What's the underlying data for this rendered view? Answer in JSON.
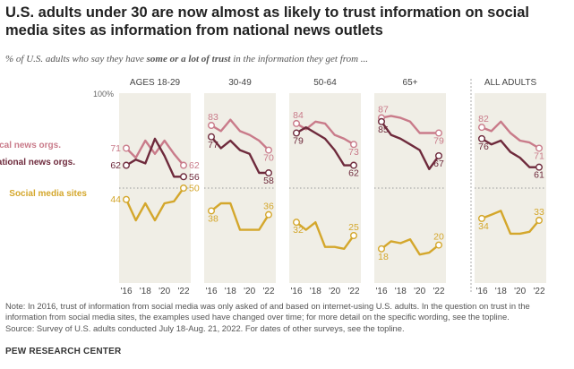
{
  "header": {
    "title": "U.S. adults under 30 are now almost as likely to trust information on social media sites as information from national news outlets",
    "subtitle_pre": "% of U.S. adults who say they have ",
    "subtitle_bold": "some or a lot of trust",
    "subtitle_post": " in the information they get from ..."
  },
  "footnote": {
    "note": "Note: In 2016, trust of information from social media was only asked of and based on internet-using U.S. adults. In the question on trust in the information from social media sites, the examples used have changed over time; for more detail on the specific wording, see the topline.",
    "source": "Source: Survey of U.S. adults conducted July 18-Aug. 21, 2022. For dates of other surveys, see the topline.",
    "org": "PEW RESEARCH CENTER"
  },
  "chart_data": {
    "type": "line",
    "y_axis_top_label": "100%",
    "ylim": [
      0,
      100
    ],
    "x_tick_labels": [
      "'16",
      "'18",
      "'20",
      "'22"
    ],
    "colors": {
      "local": "#c97b8a",
      "national": "#6e2a3c",
      "social": "#d4a72c",
      "panel_bg": "#f0eee6"
    },
    "series_labels": {
      "local": "Local news orgs.",
      "national": "National news orgs.",
      "social": "Social media sites"
    },
    "panels": [
      {
        "name": "AGES 18-29",
        "local": {
          "x": [
            2016,
            2017,
            2018,
            2019,
            2020,
            2021,
            2022
          ],
          "y": [
            71,
            66,
            75,
            68,
            75,
            68,
            62
          ]
        },
        "national": {
          "x": [
            2016,
            2017,
            2018,
            2019,
            2020,
            2021,
            2022
          ],
          "y": [
            62,
            65,
            63,
            76,
            67,
            56,
            56
          ]
        },
        "social": {
          "x": [
            2016,
            2017,
            2018,
            2019,
            2020,
            2021,
            2022
          ],
          "y": [
            44,
            33,
            42,
            33,
            42,
            43,
            50
          ]
        },
        "start_labels": {
          "local": "71",
          "national": "62",
          "social": "44"
        },
        "end_labels": {
          "local": "62",
          "national": "56",
          "social": "50"
        }
      },
      {
        "name": "30-49",
        "local": {
          "x": [
            2016,
            2017,
            2018,
            2019,
            2020,
            2021,
            2022
          ],
          "y": [
            83,
            80,
            86,
            80,
            78,
            75,
            70
          ]
        },
        "national": {
          "x": [
            2016,
            2017,
            2018,
            2019,
            2020,
            2021,
            2022
          ],
          "y": [
            77,
            71,
            75,
            70,
            68,
            58,
            58
          ]
        },
        "social": {
          "x": [
            2016,
            2017,
            2018,
            2019,
            2020,
            2021,
            2022
          ],
          "y": [
            38,
            42,
            42,
            28,
            28,
            28,
            36
          ]
        },
        "start_labels": {
          "local": "83",
          "national": "77",
          "social": "38"
        },
        "end_labels": {
          "local": "70",
          "national": "58",
          "social": "36"
        }
      },
      {
        "name": "50-64",
        "local": {
          "x": [
            2016,
            2017,
            2018,
            2019,
            2020,
            2021,
            2022
          ],
          "y": [
            84,
            81,
            85,
            84,
            78,
            76,
            73
          ]
        },
        "national": {
          "x": [
            2016,
            2017,
            2018,
            2019,
            2020,
            2021,
            2022
          ],
          "y": [
            79,
            82,
            79,
            76,
            70,
            62,
            62
          ]
        },
        "social": {
          "x": [
            2016,
            2017,
            2018,
            2019,
            2020,
            2021,
            2022
          ],
          "y": [
            32,
            28,
            32,
            19,
            19,
            18,
            25
          ]
        },
        "start_labels": {
          "local": "84",
          "national": "79",
          "social": "32"
        },
        "end_labels": {
          "local": "73",
          "national": "62",
          "social": "25"
        }
      },
      {
        "name": "65+",
        "local": {
          "x": [
            2016,
            2017,
            2018,
            2019,
            2020,
            2021,
            2022
          ],
          "y": [
            87,
            88,
            87,
            85,
            79,
            79,
            79
          ]
        },
        "national": {
          "x": [
            2016,
            2017,
            2018,
            2019,
            2020,
            2021,
            2022
          ],
          "y": [
            85,
            78,
            76,
            73,
            70,
            60,
            67
          ]
        },
        "social": {
          "x": [
            2016,
            2017,
            2018,
            2019,
            2020,
            2021,
            2022
          ],
          "y": [
            18,
            22,
            21,
            23,
            15,
            16,
            20
          ]
        },
        "start_labels": {
          "local": "87",
          "national": "85",
          "social": "18"
        },
        "end_labels": {
          "local": "79",
          "national": "67",
          "social": "20"
        }
      },
      {
        "name": "ALL ADULTS",
        "local": {
          "x": [
            2016,
            2017,
            2018,
            2019,
            2020,
            2021,
            2022
          ],
          "y": [
            82,
            80,
            85,
            79,
            75,
            74,
            71
          ]
        },
        "national": {
          "x": [
            2016,
            2017,
            2018,
            2019,
            2020,
            2021,
            2022
          ],
          "y": [
            76,
            73,
            75,
            69,
            66,
            61,
            61
          ]
        },
        "social": {
          "x": [
            2016,
            2017,
            2018,
            2019,
            2020,
            2021,
            2022
          ],
          "y": [
            34,
            36,
            38,
            26,
            26,
            27,
            33
          ]
        },
        "start_labels": {
          "local": "82",
          "national": "76",
          "social": "34"
        },
        "end_labels": {
          "local": "71",
          "national": "61",
          "social": "33"
        }
      }
    ]
  }
}
